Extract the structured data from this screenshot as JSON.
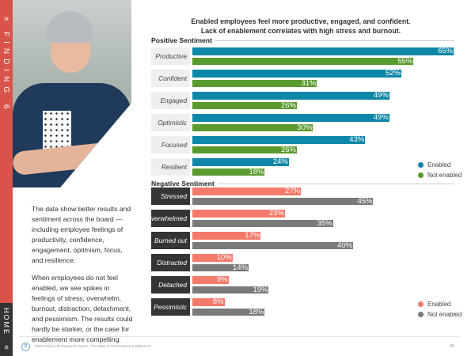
{
  "sidebar": {
    "finding_label": "FINDING 6",
    "home_label": "HOME",
    "chevron_right": "»",
    "chevron_up": "«"
  },
  "body": {
    "paragraph1": "The data show better results and sentiment across the board —including employee feelings of productivity, confidence, engagement, optimism, focus, and resilience.",
    "paragraph2": "When employees do not feel enabled, we see spikes in feelings of stress, overwhelm, burnout, distraction, detachment, and pessimism. The results could hardly be starker, or the case for enablement more compelling."
  },
  "footer": {
    "text": "2023 Global HR Research Report: The State of Performance Enablement",
    "page": "38",
    "logo": "b"
  },
  "chart_data": {
    "type": "bar",
    "orientation": "horizontal",
    "title_line1": "Enabled employees feel more productive, engaged, and confident.",
    "title_line2": "Lack of enablement correlates with high stress and burnout.",
    "xlim": [
      0,
      65
    ],
    "groups": [
      {
        "name": "Positive Sentiment",
        "categories": [
          "Productive",
          "Confident",
          "Engaged",
          "Optimistic",
          "Focused",
          "Resilient"
        ],
        "series": [
          {
            "name": "Enabled",
            "color": "#0e87a8",
            "values": [
              65,
              52,
              49,
              49,
              43,
              24
            ]
          },
          {
            "name": "Not enabled",
            "color": "#5a9a2e",
            "values": [
              55,
              31,
              26,
              30,
              26,
              18
            ]
          }
        ]
      },
      {
        "name": "Negative Sentiment",
        "categories": [
          "Stressed",
          "Overwhelmed",
          "Burned out",
          "Distracted",
          "Detached",
          "Pessimistic"
        ],
        "series": [
          {
            "name": "Enabled",
            "color": "#f47a6c",
            "values": [
              27,
              23,
              17,
              10,
              9,
              8
            ]
          },
          {
            "name": "Not enabled",
            "color": "#7a7a7a",
            "values": [
              45,
              35,
              40,
              14,
              19,
              18
            ]
          }
        ]
      }
    ]
  }
}
